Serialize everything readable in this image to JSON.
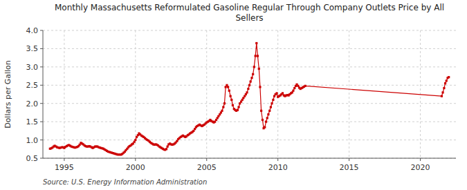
{
  "chart_data": {
    "type": "line",
    "title": "Monthly Massachusetts Reformulated Gasoline Regular Through Company Outlets Price by All\nSellers",
    "ylabel": "Dollars per Gallon",
    "source": "Source: U.S. Energy Information Administration",
    "color": "#cc0000",
    "marker": "square",
    "grid": true,
    "xlim": [
      1993.5,
      2022.5
    ],
    "ylim": [
      0.5,
      4.0
    ],
    "xticks": [
      1995,
      2000,
      2005,
      2010,
      2015,
      2020
    ],
    "yticks": [
      0.5,
      {
        "value": 1.0,
        "label": "1.0"
      },
      1.5,
      {
        "value": 2.0,
        "label": "2.0"
      },
      2.5,
      {
        "value": 3.0,
        "label": "3.0"
      },
      3.5,
      {
        "value": 4.0,
        "label": "4.0"
      }
    ],
    "x": [
      1994.0,
      1994.08,
      1994.17,
      1994.25,
      1994.33,
      1994.42,
      1994.5,
      1994.58,
      1994.67,
      1994.75,
      1994.83,
      1994.92,
      1995.0,
      1995.08,
      1995.17,
      1995.25,
      1995.33,
      1995.42,
      1995.5,
      1995.58,
      1995.67,
      1995.75,
      1995.83,
      1995.92,
      1996.0,
      1996.08,
      1996.17,
      1996.25,
      1996.33,
      1996.42,
      1996.5,
      1996.58,
      1996.67,
      1996.75,
      1996.83,
      1996.92,
      1997.0,
      1997.08,
      1997.17,
      1997.25,
      1997.33,
      1997.42,
      1997.5,
      1997.58,
      1997.67,
      1997.75,
      1997.83,
      1997.92,
      1998.0,
      1998.08,
      1998.17,
      1998.25,
      1998.33,
      1998.42,
      1998.5,
      1998.58,
      1998.67,
      1998.75,
      1998.83,
      1998.92,
      1999.0,
      1999.08,
      1999.17,
      1999.25,
      1999.33,
      1999.42,
      1999.5,
      1999.58,
      1999.67,
      1999.75,
      1999.83,
      1999.92,
      2000.0,
      2000.08,
      2000.17,
      2000.25,
      2000.33,
      2000.42,
      2000.5,
      2000.58,
      2000.67,
      2000.75,
      2000.83,
      2000.92,
      2001.0,
      2001.08,
      2001.17,
      2001.25,
      2001.33,
      2001.42,
      2001.5,
      2001.58,
      2001.67,
      2001.75,
      2001.83,
      2001.92,
      2002.0,
      2002.08,
      2002.17,
      2002.25,
      2002.33,
      2002.42,
      2002.5,
      2002.58,
      2002.67,
      2002.75,
      2002.83,
      2002.92,
      2003.0,
      2003.08,
      2003.17,
      2003.25,
      2003.33,
      2003.42,
      2003.5,
      2003.58,
      2003.67,
      2003.75,
      2003.83,
      2003.92,
      2004.0,
      2004.08,
      2004.17,
      2004.25,
      2004.33,
      2004.42,
      2004.5,
      2004.58,
      2004.67,
      2004.75,
      2004.83,
      2004.92,
      2005.0,
      2005.08,
      2005.17,
      2005.25,
      2005.33,
      2005.42,
      2005.5,
      2005.58,
      2005.67,
      2005.75,
      2005.83,
      2005.92,
      2006.0,
      2006.08,
      2006.17,
      2006.25,
      2006.33,
      2006.42,
      2006.5,
      2006.58,
      2006.67,
      2006.75,
      2006.83,
      2006.92,
      2007.0,
      2007.08,
      2007.17,
      2007.25,
      2007.33,
      2007.42,
      2007.5,
      2007.58,
      2007.67,
      2007.75,
      2007.83,
      2007.92,
      2008.0,
      2008.08,
      2008.17,
      2008.25,
      2008.33,
      2008.42,
      2008.5,
      2008.58,
      2008.67,
      2008.75,
      2008.83,
      2008.92,
      2009.0,
      2009.08,
      2009.17,
      2009.25,
      2009.33,
      2009.42,
      2009.5,
      2009.58,
      2009.67,
      2009.75,
      2009.83,
      2009.92,
      2010.0,
      2010.08,
      2010.17,
      2010.25,
      2010.33,
      2010.42,
      2010.5,
      2010.58,
      2010.67,
      2010.75,
      2010.83,
      2010.92,
      2011.0,
      2011.08,
      2011.17,
      2011.25,
      2011.33,
      2011.42,
      2011.5,
      2011.58,
      2011.67,
      2011.75,
      2011.83,
      2011.92,
      2021.5,
      2021.58,
      2021.67,
      2021.75,
      2021.83,
      2021.92,
      2022.0
    ],
    "values": [
      0.76,
      0.77,
      0.79,
      0.82,
      0.84,
      0.82,
      0.8,
      0.79,
      0.78,
      0.79,
      0.8,
      0.8,
      0.78,
      0.81,
      0.83,
      0.85,
      0.86,
      0.84,
      0.82,
      0.81,
      0.8,
      0.79,
      0.8,
      0.81,
      0.83,
      0.87,
      0.92,
      0.9,
      0.88,
      0.85,
      0.83,
      0.82,
      0.82,
      0.83,
      0.82,
      0.8,
      0.78,
      0.8,
      0.82,
      0.82,
      0.82,
      0.8,
      0.79,
      0.78,
      0.77,
      0.76,
      0.74,
      0.72,
      0.7,
      0.68,
      0.67,
      0.66,
      0.65,
      0.64,
      0.63,
      0.62,
      0.61,
      0.6,
      0.6,
      0.6,
      0.6,
      0.62,
      0.65,
      0.68,
      0.72,
      0.76,
      0.8,
      0.83,
      0.85,
      0.88,
      0.9,
      0.95,
      1.0,
      1.08,
      1.13,
      1.18,
      1.15,
      1.12,
      1.1,
      1.08,
      1.05,
      1.02,
      1.0,
      0.98,
      0.95,
      0.92,
      0.9,
      0.88,
      0.87,
      0.88,
      0.87,
      0.85,
      0.82,
      0.8,
      0.78,
      0.76,
      0.74,
      0.73,
      0.75,
      0.82,
      0.88,
      0.9,
      0.88,
      0.87,
      0.88,
      0.9,
      0.93,
      0.97,
      1.02,
      1.05,
      1.08,
      1.1,
      1.12,
      1.1,
      1.08,
      1.1,
      1.13,
      1.15,
      1.18,
      1.2,
      1.22,
      1.25,
      1.3,
      1.35,
      1.38,
      1.4,
      1.42,
      1.4,
      1.38,
      1.4,
      1.42,
      1.45,
      1.48,
      1.5,
      1.52,
      1.55,
      1.52,
      1.5,
      1.48,
      1.5,
      1.55,
      1.6,
      1.65,
      1.7,
      1.75,
      1.8,
      1.9,
      2.0,
      2.45,
      2.5,
      2.45,
      2.35,
      2.2,
      2.1,
      1.95,
      1.85,
      1.82,
      1.8,
      1.82,
      1.9,
      2.0,
      2.05,
      2.1,
      2.15,
      2.2,
      2.25,
      2.3,
      2.4,
      2.5,
      2.6,
      2.7,
      2.8,
      3.0,
      3.3,
      3.65,
      3.3,
      2.95,
      2.45,
      1.8,
      1.55,
      1.32,
      1.35,
      1.5,
      1.6,
      1.7,
      1.8,
      1.9,
      2.0,
      2.1,
      2.2,
      2.25,
      2.28,
      2.18,
      2.2,
      2.22,
      2.25,
      2.28,
      2.22,
      2.2,
      2.22,
      2.23,
      2.22,
      2.25,
      2.28,
      2.3,
      2.35,
      2.42,
      2.48,
      2.52,
      2.48,
      2.43,
      2.4,
      2.42,
      2.44,
      2.46,
      2.48,
      2.2,
      2.3,
      2.42,
      2.55,
      2.62,
      2.7,
      2.72
    ]
  }
}
